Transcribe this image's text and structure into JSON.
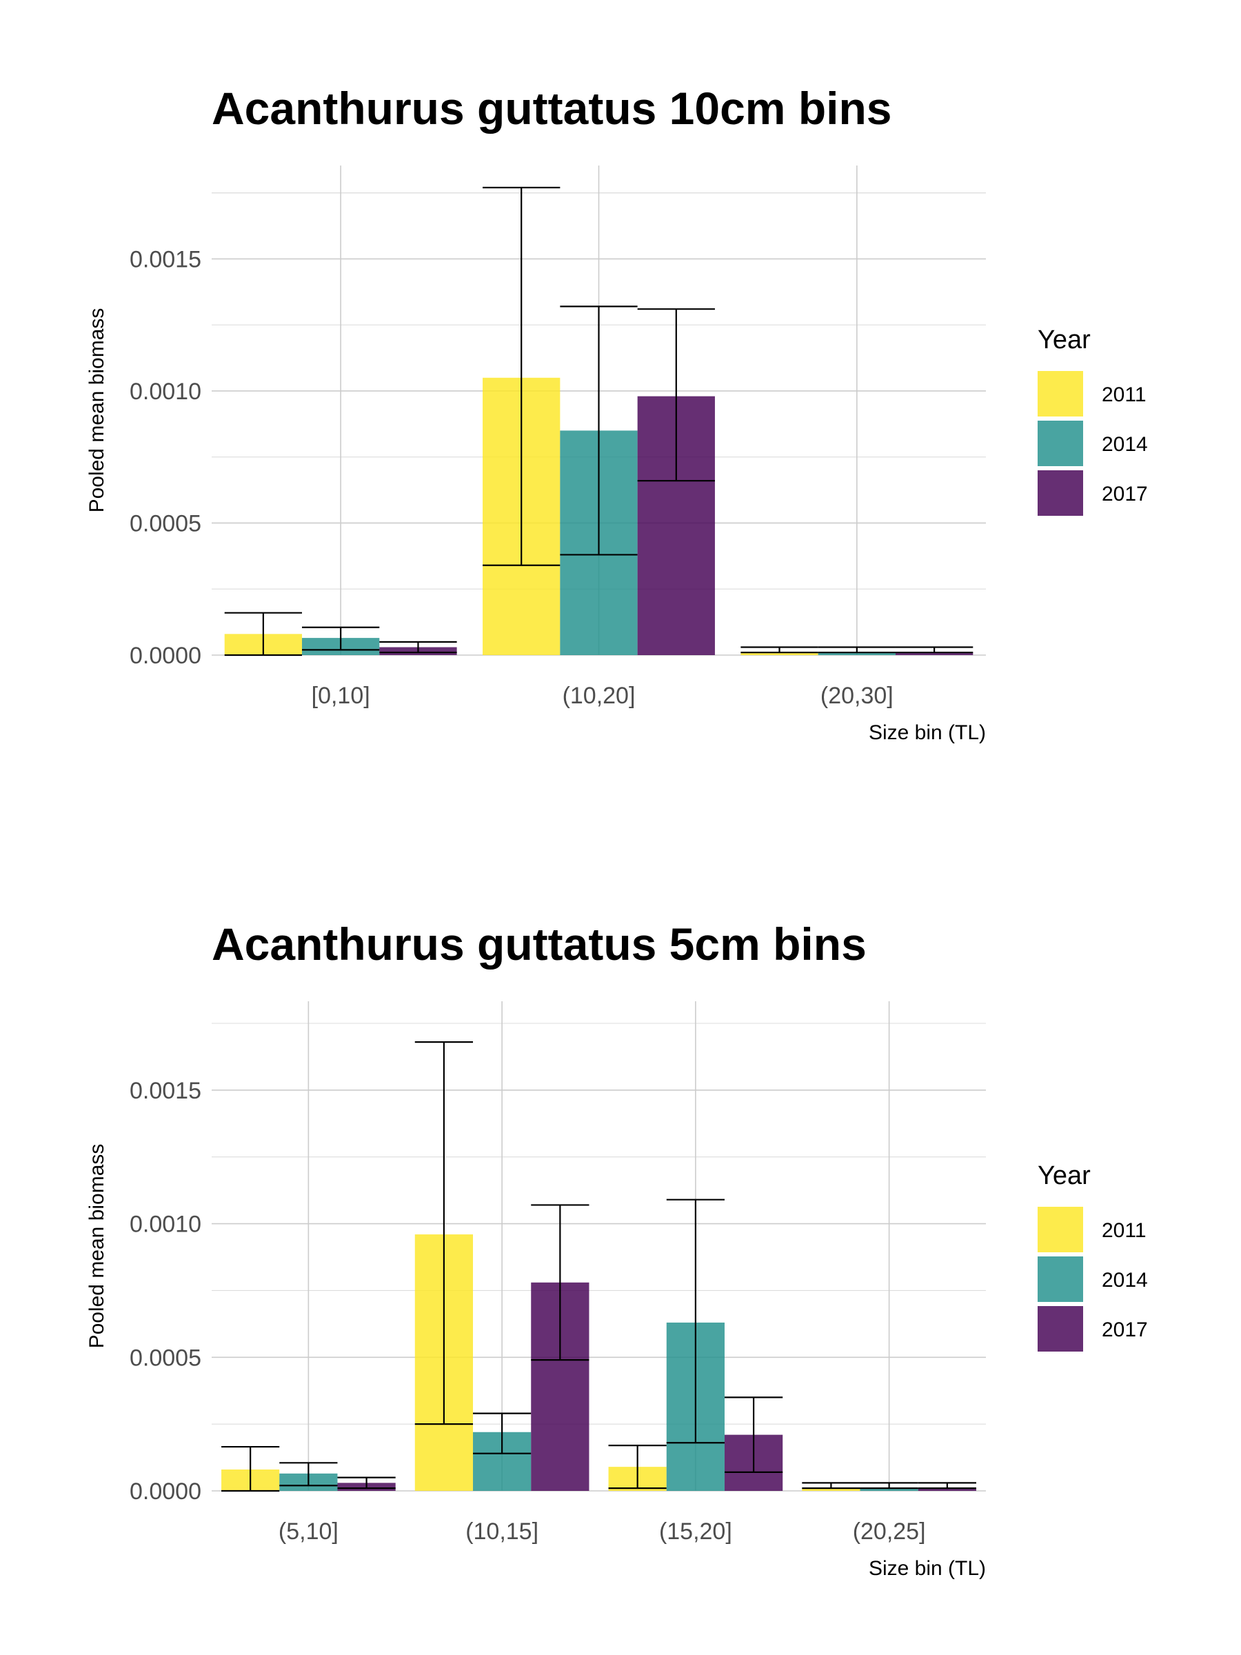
{
  "chart_data": [
    {
      "type": "bar",
      "title": "Acanthurus guttatus 10cm bins",
      "xlabel": "Size bin (TL)",
      "ylabel": "Pooled mean biomass",
      "categories": [
        "[0,10]",
        "(10,20]",
        "(20,30]"
      ],
      "ylim": [
        0,
        0.00177
      ],
      "yticks": [
        "0.0000",
        "0.0005",
        "0.0010",
        "0.0015"
      ],
      "ytick_values": [
        0,
        0.0005,
        0.001,
        0.0015
      ],
      "legend_title": "Year",
      "legend_position": "right",
      "grid": true,
      "series": [
        {
          "name": "2011",
          "color": "#FDE725",
          "values": [
            8e-05,
            0.00105,
            1e-05
          ],
          "err_low": [
            0.0,
            0.00034,
            1e-05
          ],
          "err_high": [
            0.00016,
            0.00177,
            3e-05
          ]
        },
        {
          "name": "2014",
          "color": "#21908C",
          "values": [
            6.5e-05,
            0.00085,
            1e-05
          ],
          "err_low": [
            2e-05,
            0.00038,
            1e-05
          ],
          "err_high": [
            0.000105,
            0.00132,
            3e-05
          ]
        },
        {
          "name": "2017",
          "color": "#440154",
          "values": [
            3e-05,
            0.00098,
            1e-05
          ],
          "err_low": [
            1e-05,
            0.00066,
            1e-05
          ],
          "err_high": [
            5e-05,
            0.00131,
            3e-05
          ]
        }
      ]
    },
    {
      "type": "bar",
      "title": "Acanthurus guttatus 5cm bins",
      "xlabel": "Size bin (TL)",
      "ylabel": "Pooled mean biomass",
      "categories": [
        "(5,10]",
        "(10,15]",
        "(15,20]",
        "(20,25]"
      ],
      "ylim": [
        0,
        0.00175
      ],
      "yticks": [
        "0.0000",
        "0.0005",
        "0.0010",
        "0.0015"
      ],
      "ytick_values": [
        0,
        0.0005,
        0.001,
        0.0015
      ],
      "legend_title": "Year",
      "legend_position": "right",
      "grid": true,
      "series": [
        {
          "name": "2011",
          "color": "#FDE725",
          "values": [
            8e-05,
            0.00096,
            9e-05,
            1e-05
          ],
          "err_low": [
            0.0,
            0.00025,
            1e-05,
            1e-05
          ],
          "err_high": [
            0.000165,
            0.00168,
            0.00017,
            3e-05
          ]
        },
        {
          "name": "2014",
          "color": "#21908C",
          "values": [
            6.5e-05,
            0.00022,
            0.00063,
            1e-05
          ],
          "err_low": [
            2e-05,
            0.00014,
            0.00018,
            1e-05
          ],
          "err_high": [
            0.000105,
            0.00029,
            0.00109,
            3e-05
          ]
        },
        {
          "name": "2017",
          "color": "#440154",
          "values": [
            3e-05,
            0.00078,
            0.00021,
            1e-05
          ],
          "err_low": [
            1e-05,
            0.00049,
            7e-05,
            1e-05
          ],
          "err_high": [
            5e-05,
            0.00107,
            0.00035,
            3e-05
          ]
        }
      ]
    }
  ]
}
